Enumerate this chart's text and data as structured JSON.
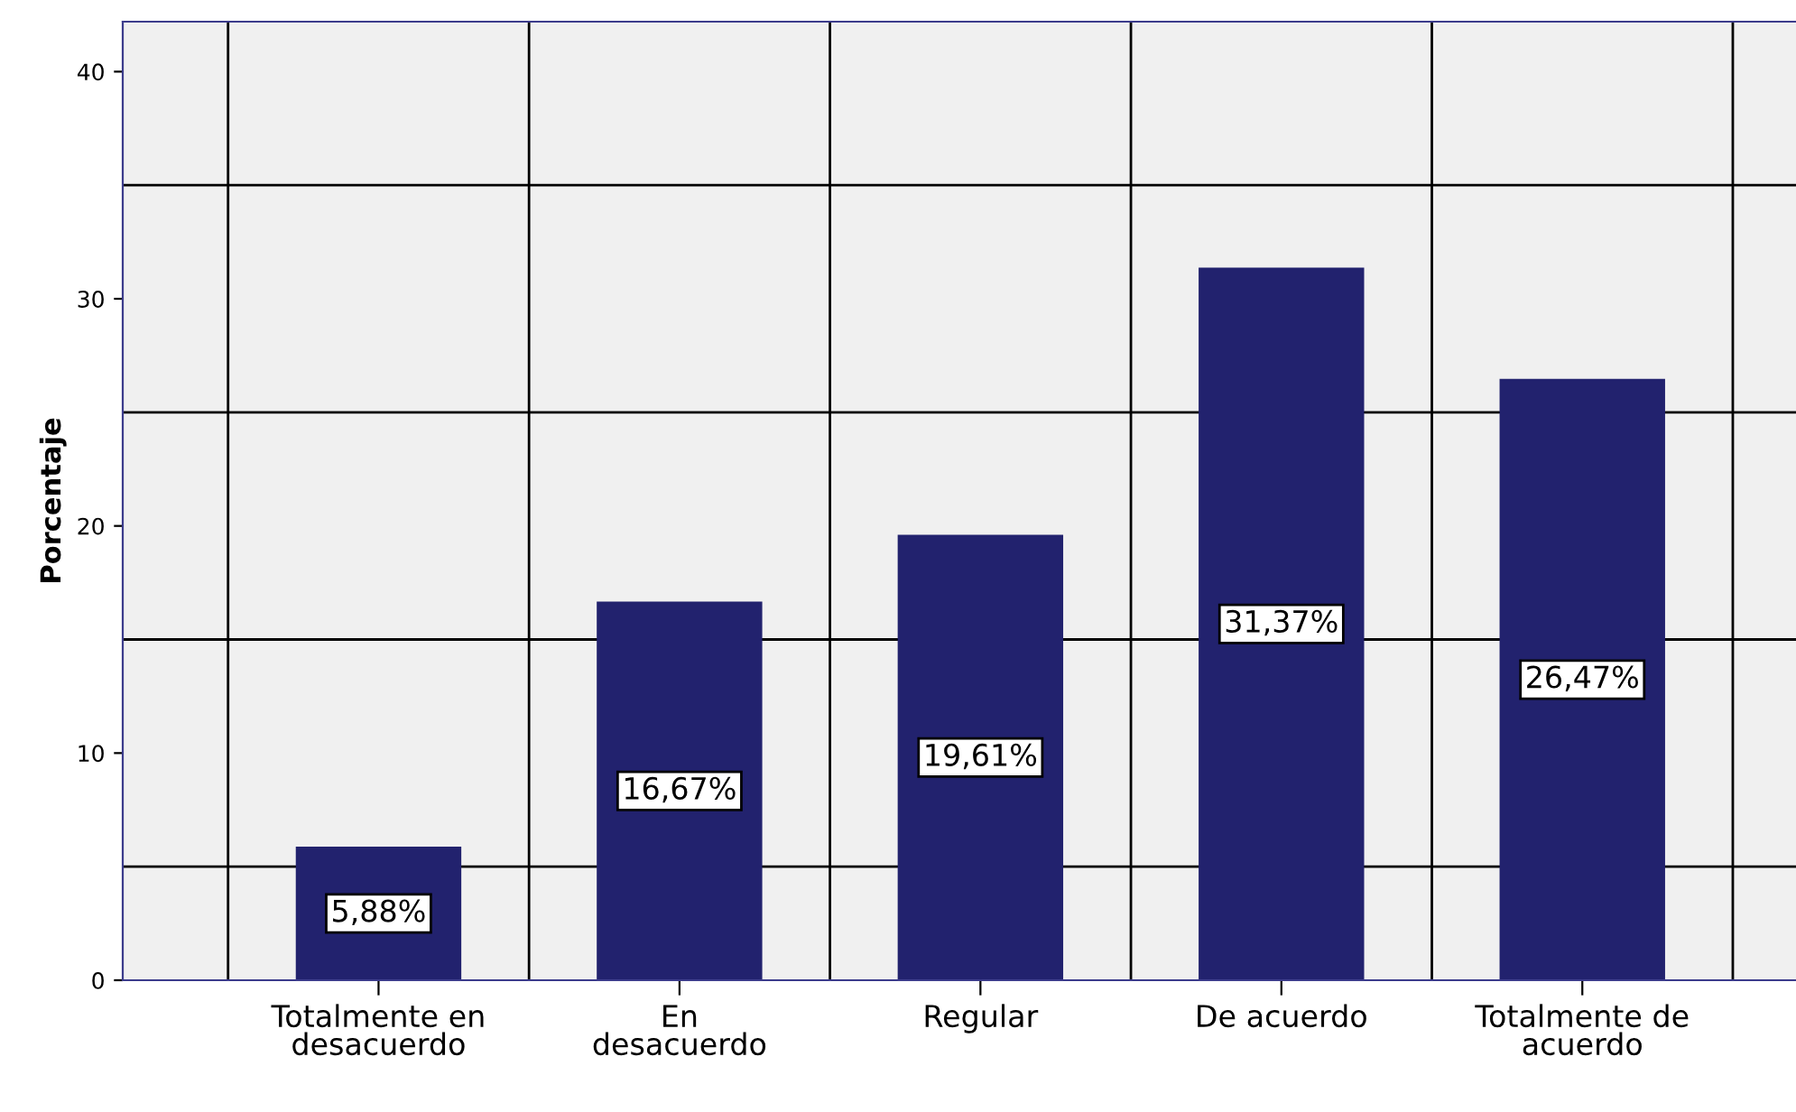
{
  "chart_data": {
    "type": "bar",
    "ylabel": "Porcentaje",
    "categories": [
      "Totalmente en\ndesacuerdo",
      "En\ndesacuerdo",
      "Regular",
      "De acuerdo",
      "Totalmente de\nacuerdo"
    ],
    "values": [
      5.88,
      16.67,
      19.61,
      31.37,
      26.47
    ],
    "value_labels": [
      "5,88%",
      "16,67%",
      "19,61%",
      "31,37%",
      "26,47%"
    ],
    "color": "#22226e",
    "ylim": [
      0,
      42.2
    ],
    "yticks": [
      0,
      10,
      20,
      30,
      40
    ],
    "grid": true
  }
}
